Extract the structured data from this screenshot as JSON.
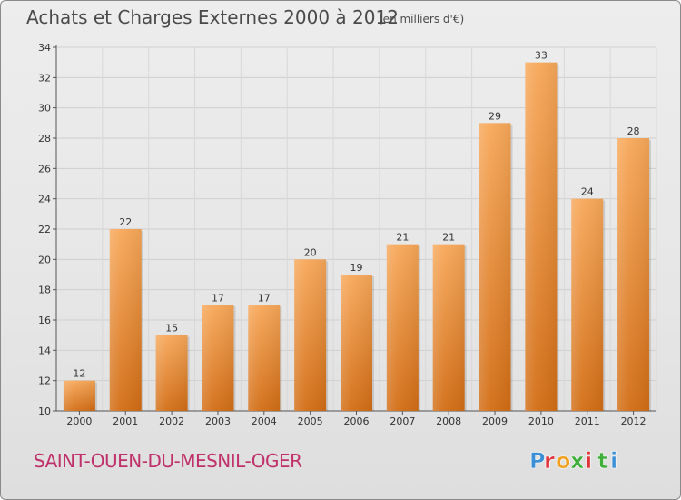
{
  "header": {
    "title": "Achats et Charges Externes 2000 à 2012",
    "unit": "(en milliers d'€)"
  },
  "footer": {
    "commune": "SAINT-OUEN-DU-MESNIL-OGER",
    "logo_text": "Proxiti"
  },
  "colors": {
    "bar_top": "#f7a85a",
    "bar_bottom": "#d26d15",
    "commune": "#c0306a",
    "logo_letters": [
      "#3b8fd6",
      "#e0343a",
      "#f0a020",
      "#3fae3a",
      "#e0343a",
      "#3fae3a",
      "#3b8fd6"
    ]
  },
  "chart_data": {
    "type": "bar",
    "title": "Achats et Charges Externes 2000 à 2012",
    "subtitle": "(en milliers d'€)",
    "categories": [
      "2000",
      "2001",
      "2002",
      "2003",
      "2004",
      "2005",
      "2006",
      "2007",
      "2008",
      "2009",
      "2010",
      "2011",
      "2012"
    ],
    "values": [
      12,
      22,
      15,
      17,
      17,
      20,
      19,
      21,
      21,
      29,
      33,
      24,
      28
    ],
    "ylim": [
      10,
      34
    ],
    "yticks": [
      10,
      12,
      14,
      16,
      18,
      20,
      22,
      24,
      26,
      28,
      30,
      32,
      34
    ],
    "grid": true,
    "data_labels": true
  }
}
